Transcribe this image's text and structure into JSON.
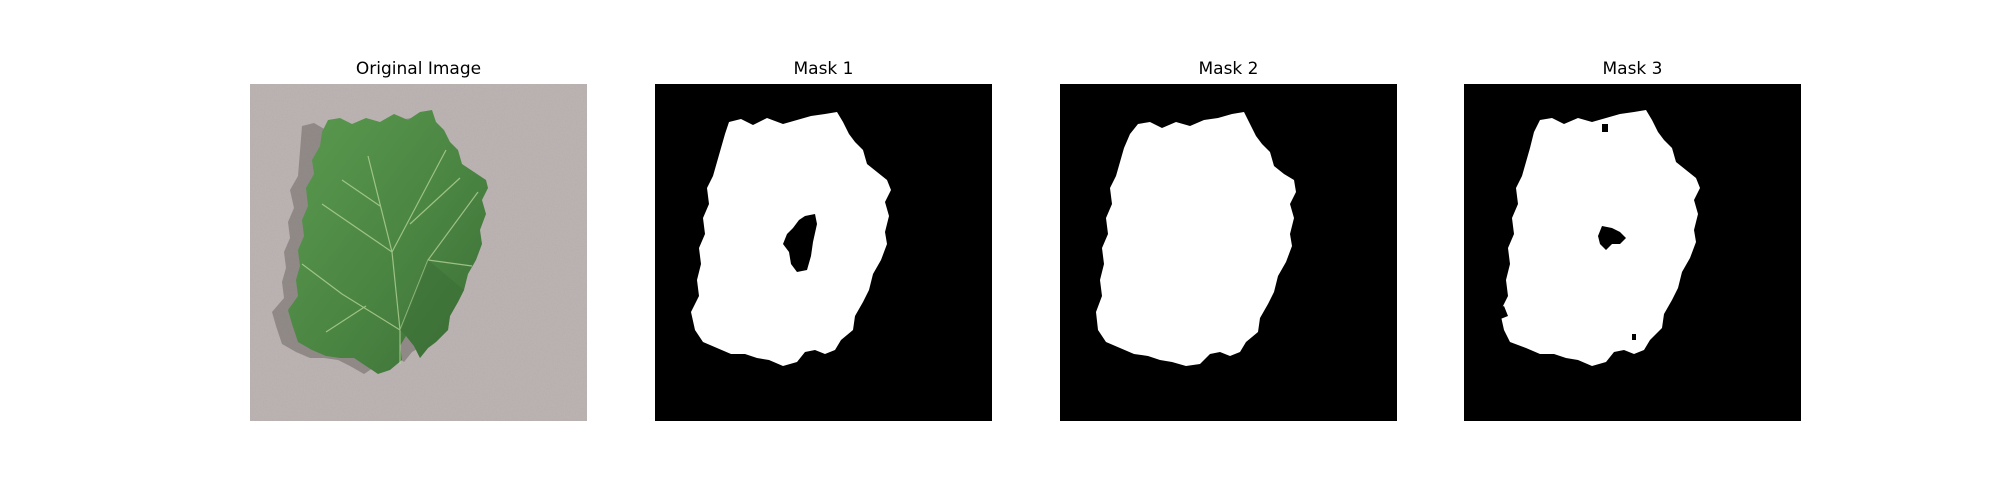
{
  "figure": {
    "panels": [
      {
        "title": "Original Image"
      },
      {
        "title": "Mask 1"
      },
      {
        "title": "Mask 2"
      },
      {
        "title": "Mask 3"
      }
    ]
  },
  "colors": {
    "background": "#ffffff",
    "mask_background": "#000000",
    "mask_foreground": "#ffffff",
    "photo_backdrop": "#bdb5b4",
    "leaf_green": "#4f8a45",
    "leaf_dark": "#3b6c35",
    "leaf_vein": "#b9d79b"
  }
}
